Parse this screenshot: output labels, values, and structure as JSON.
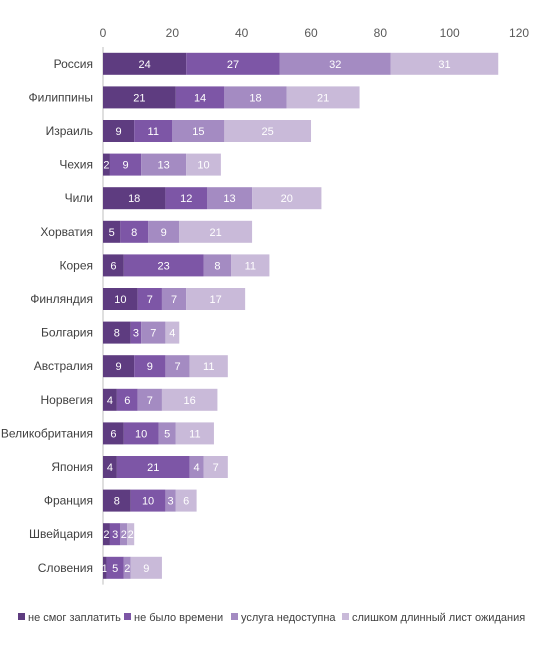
{
  "chart_data": {
    "type": "bar",
    "orientation": "horizontal",
    "stacked": true,
    "categories": [
      "Россия",
      "Филиппины",
      "Израиль",
      "Чехия",
      "Чили",
      "Хорватия",
      "Корея",
      "Финляндия",
      "Болгария",
      "Австралия",
      "Норвегия",
      "Великобритания",
      "Япония",
      "Франция",
      "Швейцария",
      "Словения"
    ],
    "series": [
      {
        "name": "не смог заплатить",
        "color": "#5e3c80",
        "values": [
          24,
          21,
          9,
          2,
          18,
          5,
          6,
          10,
          8,
          9,
          4,
          6,
          4,
          8,
          2,
          1
        ]
      },
      {
        "name": "не было времени",
        "color": "#7d56a6",
        "values": [
          27,
          14,
          11,
          9,
          12,
          8,
          23,
          7,
          3,
          9,
          6,
          10,
          21,
          10,
          3,
          5
        ]
      },
      {
        "name": "услуга недоступна",
        "color": "#a48bc2",
        "values": [
          32,
          18,
          15,
          13,
          13,
          9,
          8,
          7,
          7,
          7,
          7,
          5,
          4,
          3,
          2,
          2
        ]
      },
      {
        "name": "слишком длинный лист ожидания",
        "color": "#c9bad9",
        "values": [
          31,
          21,
          25,
          10,
          20,
          21,
          11,
          17,
          4,
          11,
          16,
          11,
          7,
          6,
          2,
          9
        ]
      }
    ],
    "xlim": [
      0,
      120
    ],
    "xticks": [
      0,
      20,
      40,
      60,
      80,
      100,
      120
    ],
    "axis_position": "top",
    "grid": false,
    "legend_position": "bottom",
    "data_labels": true,
    "title": "",
    "xlabel": "",
    "ylabel": ""
  }
}
